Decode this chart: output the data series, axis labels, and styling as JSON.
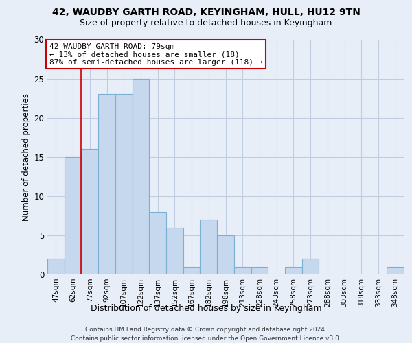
{
  "title_line1": "42, WAUDBY GARTH ROAD, KEYINGHAM, HULL, HU12 9TN",
  "title_line2": "Size of property relative to detached houses in Keyingham",
  "xlabel": "Distribution of detached houses by size in Keyingham",
  "ylabel": "Number of detached properties",
  "bar_labels": [
    "47sqm",
    "62sqm",
    "77sqm",
    "92sqm",
    "107sqm",
    "122sqm",
    "137sqm",
    "152sqm",
    "167sqm",
    "182sqm",
    "198sqm",
    "213sqm",
    "228sqm",
    "243sqm",
    "258sqm",
    "273sqm",
    "288sqm",
    "303sqm",
    "318sqm",
    "333sqm",
    "348sqm"
  ],
  "bar_values": [
    2,
    15,
    16,
    23,
    23,
    25,
    8,
    6,
    1,
    7,
    5,
    1,
    1,
    0,
    1,
    2,
    0,
    0,
    0,
    0,
    1
  ],
  "bar_color": "#c5d8ee",
  "bar_edge_color": "#7bafd4",
  "ylim": [
    0,
    30
  ],
  "yticks": [
    0,
    5,
    10,
    15,
    20,
    25,
    30
  ],
  "annotation_line1": "42 WAUDBY GARTH ROAD: 79sqm",
  "annotation_line2": "← 13% of detached houses are smaller (18)",
  "annotation_line3": "87% of semi-detached houses are larger (118) →",
  "redline_bar_index": 2,
  "footer_line1": "Contains HM Land Registry data © Crown copyright and database right 2024.",
  "footer_line2": "Contains public sector information licensed under the Open Government Licence v3.0.",
  "background_color": "#e8eef8",
  "plot_bg_color": "#e8eef8",
  "grid_color": "#c0cce0"
}
